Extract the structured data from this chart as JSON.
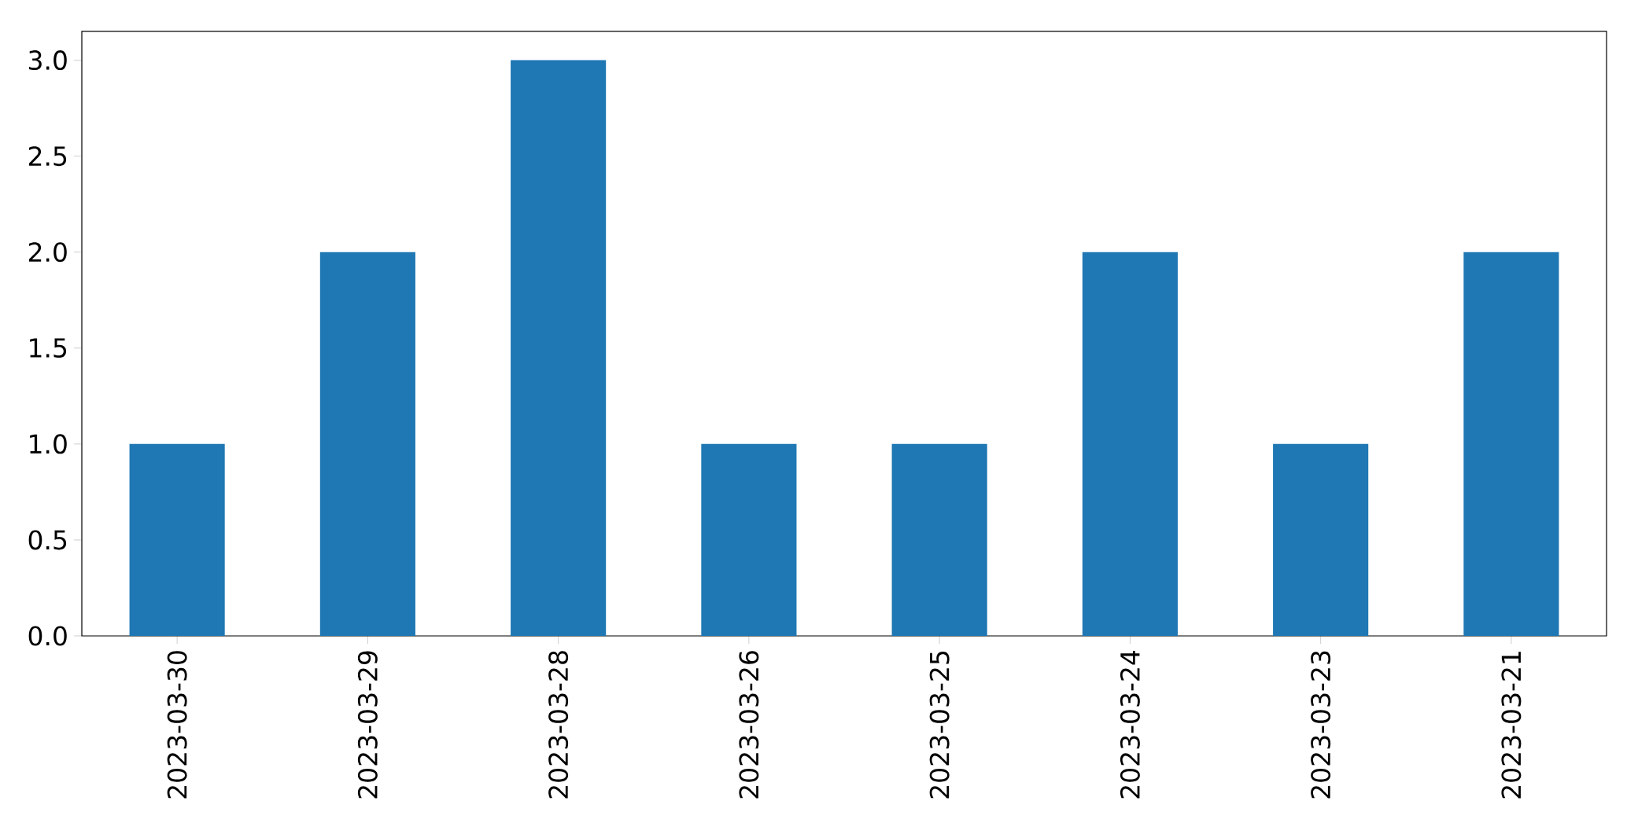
{
  "chart_data": {
    "type": "bar",
    "categories": [
      "2023-03-30",
      "2023-03-29",
      "2023-03-28",
      "2023-03-26",
      "2023-03-25",
      "2023-03-24",
      "2023-03-23",
      "2023-03-21"
    ],
    "values": [
      1,
      2,
      3,
      1,
      1,
      2,
      1,
      2
    ],
    "color": "#1f77b4",
    "ylim": [
      0,
      3.15
    ],
    "yticks": [
      {
        "value": 0,
        "label": "0.0"
      },
      {
        "value": 0.5,
        "label": "0.5"
      },
      {
        "value": 1,
        "label": "1.0"
      },
      {
        "value": 1.5,
        "label": "1.5"
      },
      {
        "value": 2,
        "label": "2.0"
      },
      {
        "value": 2.5,
        "label": "2.5"
      },
      {
        "value": 3,
        "label": "3.0"
      }
    ],
    "grid": false
  }
}
